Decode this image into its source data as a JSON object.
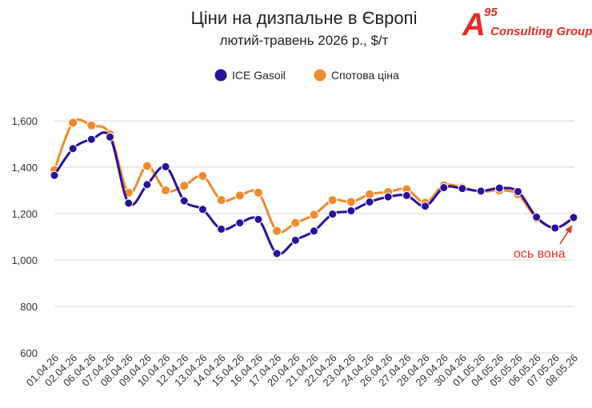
{
  "chart_data": {
    "type": "line",
    "title": "Ціни на дизпальне в Європі",
    "subtitle": "лютий-травень 2026 р., $/т",
    "xlabel": "",
    "ylabel": "",
    "ylim": [
      600,
      1700
    ],
    "yticks": [
      "600",
      "800",
      "1,000",
      "1,200",
      "1,400",
      "1,600"
    ],
    "ytick_values": [
      600,
      800,
      1000,
      1200,
      1400,
      1600
    ],
    "grid": true,
    "legend": "top",
    "categories": [
      "01.04.26",
      "02.04.26",
      "06.04.26",
      "07.04.26",
      "08.04.26",
      "09.04.26",
      "10.04.26",
      "12.04.26",
      "13.04.26",
      "14.04.26",
      "15.04.26",
      "16.04.26",
      "17.04.26",
      "20.04.26",
      "21.04.26",
      "22.04.26",
      "23.04.26",
      "24.04.26",
      "26.04.26",
      "27.04.26",
      "28.04.26",
      "29.04.26",
      "30.04.26",
      "01.05.26",
      "04.05.26",
      "05.05.26",
      "06.05.26",
      "07.05.26",
      "08.05.26"
    ],
    "series": [
      {
        "name": "ICE Gasoil",
        "color": "#2a0f9c",
        "values": [
          1365,
          1480,
          1520,
          1530,
          1245,
          1325,
          1402,
          1255,
          1218,
          1133,
          1160,
          1175,
          1028,
          1085,
          1125,
          1198,
          1212,
          1250,
          1272,
          1278,
          1232,
          1312,
          1308,
          1297,
          1310,
          1295,
          1185,
          1138,
          1183
        ]
      },
      {
        "name": "Спотова ціна",
        "color": "#f08a2c",
        "values": [
          1388,
          1592,
          1580,
          1542,
          1290,
          1405,
          1300,
          1320,
          1362,
          1258,
          1278,
          1290,
          1125,
          1160,
          1195,
          1258,
          1250,
          1283,
          1293,
          1305,
          1247,
          1322,
          1312,
          1295,
          1300,
          1283,
          1180,
          1138,
          1180
        ]
      }
    ],
    "annotation": {
      "text": "ось вона",
      "color": "#e0352b",
      "target_index": 28
    }
  },
  "logo": {
    "letter": "A",
    "superscript": "95",
    "text": "Consulting Group",
    "color": "#e52b25"
  }
}
